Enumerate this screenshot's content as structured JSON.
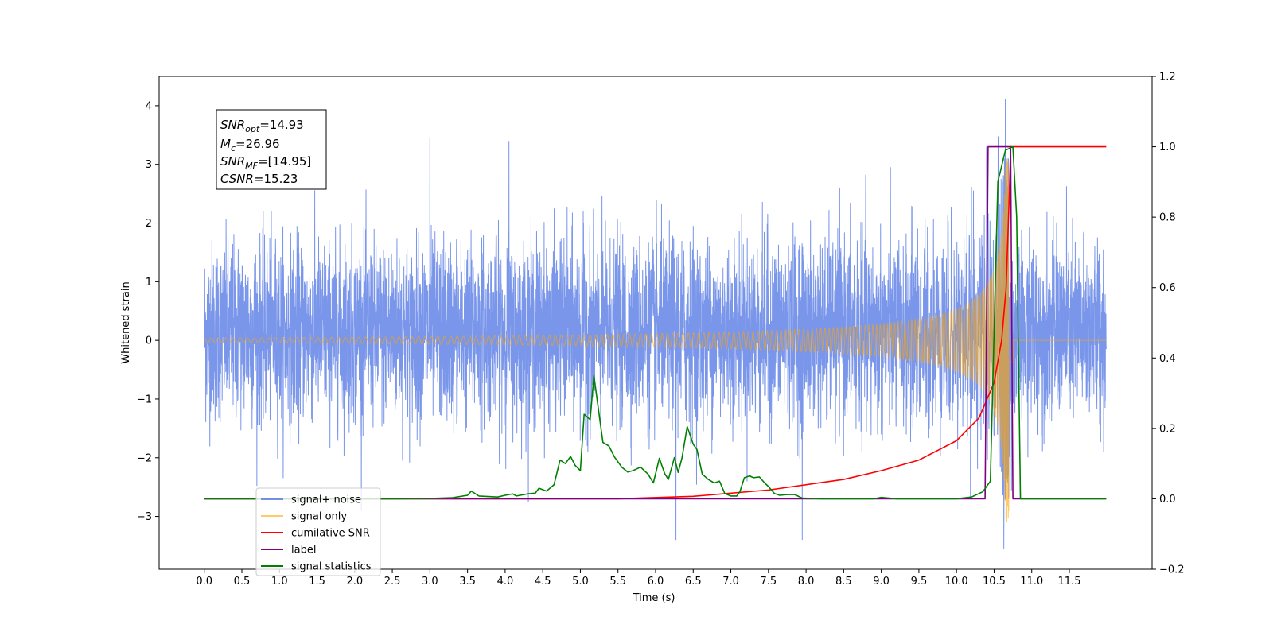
{
  "chart_data": {
    "type": "line",
    "xlabel": "Time (s)",
    "ylabel": "Whitened strain",
    "xlim": [
      -0.6,
      12.6
    ],
    "ylim_left": [
      -3.9,
      4.5
    ],
    "ylim_right": [
      -0.2,
      1.2
    ],
    "x_ticks": [
      "0.0",
      "0.5",
      "1.0",
      "1.5",
      "2.0",
      "2.5",
      "3.0",
      "3.5",
      "4.0",
      "4.5",
      "5.0",
      "5.5",
      "6.0",
      "6.5",
      "7.0",
      "7.5",
      "8.0",
      "8.5",
      "9.0",
      "9.5",
      "10.0",
      "10.5",
      "11.0",
      "11.5"
    ],
    "y_ticks_left": [
      "−3",
      "−2",
      "−1",
      "0",
      "1",
      "2",
      "3",
      "4"
    ],
    "y_ticks_right": [
      "−0.2",
      "0.0",
      "0.2",
      "0.4",
      "0.6",
      "0.8",
      "1.0",
      "1.2"
    ],
    "grid": false,
    "legend_position": "lower-left",
    "annotation": {
      "lines": [
        {
          "sym": "SNR",
          "sub": "opt",
          "value": "=14.93"
        },
        {
          "sym": "M",
          "sub": "c",
          "value": "=26.96"
        },
        {
          "sym": "SNR",
          "sub": "MF",
          "value": "=[14.95]"
        },
        {
          "sym": "CSNR",
          "sub": "",
          "value": "=15.23"
        }
      ]
    },
    "series": [
      {
        "name": "signal+ noise",
        "axis": "left",
        "color": "#4169e1",
        "opacity": 0.7,
        "description": "noisy whitened strain, dense samples spanning 0–12 s",
        "x_range": [
          0,
          11.99
        ],
        "envelope_typical": [
          -1.5,
          2.3
        ],
        "spikes": [
          {
            "x": 3.0,
            "y": 3.45
          },
          {
            "x": 4.05,
            "y": 3.4
          },
          {
            "x": 6.27,
            "y": -3.4
          },
          {
            "x": 7.95,
            "y": -3.4
          },
          {
            "x": 10.4,
            "y": 3.3
          },
          {
            "x": 10.65,
            "y": 4.12
          },
          {
            "x": 10.63,
            "y": -3.55
          }
        ]
      },
      {
        "name": "signal only",
        "axis": "left",
        "color": "#ffa500",
        "opacity": 0.6,
        "description": "chirp waveform, amplitude growing until merger",
        "x_range": [
          0,
          11.99
        ],
        "merger_time": 10.7,
        "peak_amplitude": 3.1
      },
      {
        "name": "cumilative SNR",
        "axis": "right",
        "color": "#ff0000",
        "points": [
          [
            0,
            0
          ],
          [
            5.5,
            0
          ],
          [
            6.5,
            0.007
          ],
          [
            7.5,
            0.025
          ],
          [
            8.5,
            0.055
          ],
          [
            9.0,
            0.08
          ],
          [
            9.5,
            0.11
          ],
          [
            10.0,
            0.165
          ],
          [
            10.3,
            0.23
          ],
          [
            10.5,
            0.33
          ],
          [
            10.6,
            0.45
          ],
          [
            10.66,
            0.6
          ],
          [
            10.7,
            0.85
          ],
          [
            10.72,
            1.0
          ],
          [
            11.99,
            1.0
          ]
        ]
      },
      {
        "name": "label",
        "axis": "right",
        "color": "#800080",
        "points": [
          [
            0,
            0
          ],
          [
            10.38,
            0
          ],
          [
            10.42,
            1.0
          ],
          [
            10.72,
            1.0
          ],
          [
            10.75,
            0
          ],
          [
            11.99,
            0
          ]
        ]
      },
      {
        "name": "signal statistics",
        "axis": "right",
        "color": "#008000",
        "points": [
          [
            0,
            0
          ],
          [
            2.5,
            0
          ],
          [
            3.0,
            0.001
          ],
          [
            3.3,
            0.003
          ],
          [
            3.5,
            0.01
          ],
          [
            3.55,
            0.022
          ],
          [
            3.65,
            0.008
          ],
          [
            3.9,
            0.005
          ],
          [
            4.0,
            0.01
          ],
          [
            4.1,
            0.014
          ],
          [
            4.15,
            0.008
          ],
          [
            4.3,
            0.014
          ],
          [
            4.4,
            0.016
          ],
          [
            4.45,
            0.03
          ],
          [
            4.55,
            0.022
          ],
          [
            4.65,
            0.04
          ],
          [
            4.73,
            0.11
          ],
          [
            4.8,
            0.1
          ],
          [
            4.87,
            0.12
          ],
          [
            4.93,
            0.095
          ],
          [
            5.0,
            0.08
          ],
          [
            5.05,
            0.24
          ],
          [
            5.13,
            0.225
          ],
          [
            5.18,
            0.35
          ],
          [
            5.23,
            0.27
          ],
          [
            5.3,
            0.16
          ],
          [
            5.38,
            0.15
          ],
          [
            5.45,
            0.12
          ],
          [
            5.55,
            0.09
          ],
          [
            5.63,
            0.076
          ],
          [
            5.7,
            0.08
          ],
          [
            5.8,
            0.09
          ],
          [
            5.9,
            0.07
          ],
          [
            5.97,
            0.045
          ],
          [
            6.05,
            0.115
          ],
          [
            6.12,
            0.072
          ],
          [
            6.17,
            0.055
          ],
          [
            6.25,
            0.117
          ],
          [
            6.3,
            0.075
          ],
          [
            6.35,
            0.115
          ],
          [
            6.42,
            0.205
          ],
          [
            6.5,
            0.155
          ],
          [
            6.55,
            0.14
          ],
          [
            6.62,
            0.07
          ],
          [
            6.7,
            0.055
          ],
          [
            6.78,
            0.045
          ],
          [
            6.85,
            0.05
          ],
          [
            6.92,
            0.015
          ],
          [
            7.0,
            0.008
          ],
          [
            7.08,
            0.008
          ],
          [
            7.12,
            0.02
          ],
          [
            7.18,
            0.06
          ],
          [
            7.25,
            0.065
          ],
          [
            7.3,
            0.06
          ],
          [
            7.38,
            0.062
          ],
          [
            7.45,
            0.045
          ],
          [
            7.5,
            0.035
          ],
          [
            7.58,
            0.015
          ],
          [
            7.65,
            0.01
          ],
          [
            7.75,
            0.012
          ],
          [
            7.85,
            0.012
          ],
          [
            7.95,
            0.002
          ],
          [
            8.2,
            0.0
          ],
          [
            8.9,
            0.0
          ],
          [
            9.0,
            0.004
          ],
          [
            9.1,
            0.002
          ],
          [
            9.2,
            0.0
          ],
          [
            10.0,
            0.0
          ],
          [
            10.2,
            0.005
          ],
          [
            10.35,
            0.02
          ],
          [
            10.45,
            0.05
          ],
          [
            10.55,
            0.9
          ],
          [
            10.65,
            0.99
          ],
          [
            10.75,
            1.0
          ],
          [
            10.8,
            0.8
          ],
          [
            10.85,
            0.0
          ],
          [
            11.99,
            0.0
          ]
        ]
      }
    ]
  }
}
